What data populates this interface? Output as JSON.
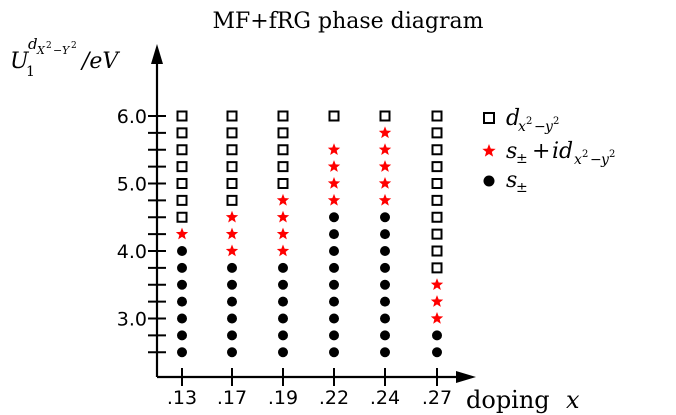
{
  "chart_data": {
    "type": "scatter",
    "title": "MF+fRG phase diagram",
    "xlabel": "doping x",
    "ylabel": "U_1^{d_{X²−Y²}}/eV",
    "categories": [
      ".13",
      ".17",
      ".19",
      ".22",
      ".24",
      ".27"
    ],
    "ylim": [
      2.5,
      6.0
    ],
    "yticks": [
      "3.0",
      "4.0",
      "5.0",
      "6.0"
    ],
    "y_step": 0.25,
    "legend_position": "top-right",
    "series": [
      {
        "name": "d_{x²−y²}",
        "marker": "open-square",
        "color": "#000000",
        "points": {
          ".13": [
            4.5,
            4.75,
            5.0,
            5.25,
            5.5,
            5.75,
            6.0
          ],
          ".17": [
            4.75,
            5.0,
            5.25,
            5.5,
            5.75,
            6.0
          ],
          ".19": [
            5.0,
            5.25,
            5.5,
            5.75,
            6.0
          ],
          ".22": [
            6.0
          ],
          ".24": [
            6.0
          ],
          ".27": [
            3.75,
            4.0,
            4.25,
            4.5,
            4.75,
            5.0,
            5.25,
            5.5,
            5.75,
            6.0
          ]
        }
      },
      {
        "name": "s_± + id_{x²−y²}",
        "marker": "star",
        "color": "#ff0000",
        "points": {
          ".13": [
            4.25
          ],
          ".17": [
            4.0,
            4.25,
            4.5
          ],
          ".19": [
            4.0,
            4.25,
            4.5,
            4.75
          ],
          ".22": [
            4.75,
            5.0,
            5.25,
            5.5
          ],
          ".24": [
            4.75,
            5.0,
            5.25,
            5.5,
            5.75
          ],
          ".27": [
            3.0,
            3.25,
            3.5
          ]
        }
      },
      {
        "name": "s_±",
        "marker": "filled-circle",
        "color": "#000000",
        "points": {
          ".13": [
            2.5,
            2.75,
            3.0,
            3.25,
            3.5,
            3.75,
            4.0
          ],
          ".17": [
            2.5,
            2.75,
            3.0,
            3.25,
            3.5,
            3.75
          ],
          ".19": [
            2.5,
            2.75,
            3.0,
            3.25,
            3.5,
            3.75
          ],
          ".22": [
            2.5,
            2.75,
            3.0,
            3.25,
            3.5,
            3.75,
            4.0,
            4.25,
            4.5
          ],
          ".24": [
            2.5,
            2.75,
            3.0,
            3.25,
            3.5,
            3.75,
            4.0,
            4.25,
            4.5
          ],
          ".27": [
            2.5,
            2.75
          ]
        }
      }
    ]
  }
}
